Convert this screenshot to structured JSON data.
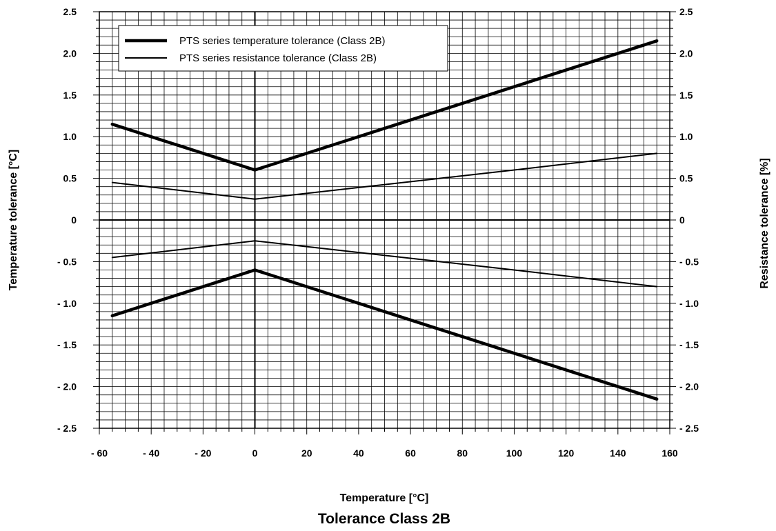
{
  "chart_data": {
    "type": "line",
    "title": "Tolerance Class 2B",
    "xlabel": "Temperature [°C]",
    "ylabel_left": "Temperature tolerance [°C]",
    "ylabel_right": "Resistance tolerance [%]",
    "xlim": [
      -60,
      160
    ],
    "ylim": [
      -2.5,
      2.5
    ],
    "x_ticks": [
      "- 60",
      "- 40",
      "- 20",
      "0",
      "20",
      "40",
      "60",
      "80",
      "100",
      "120",
      "140",
      "160"
    ],
    "y_ticks": [
      "2.5",
      "2.0",
      "1.5",
      "1.0",
      "0.5",
      "0",
      "- 0.5",
      "- 1.0",
      "- 1.5",
      "- 2.0",
      "- 2.5"
    ],
    "grid": true,
    "legend_position": "top-left",
    "series": [
      {
        "name": "PTS series temperature tolerance (Class 2B)",
        "style": "thick",
        "upper": [
          [
            -55,
            1.15
          ],
          [
            0,
            0.6
          ],
          [
            155,
            2.15
          ]
        ],
        "lower": [
          [
            -55,
            -1.15
          ],
          [
            0,
            -0.6
          ],
          [
            155,
            -2.15
          ]
        ]
      },
      {
        "name": "PTS series resistance tolerance (Class 2B)",
        "style": "thin",
        "upper": [
          [
            -55,
            0.45
          ],
          [
            0,
            0.25
          ],
          [
            40,
            0.39
          ],
          [
            100,
            0.6
          ],
          [
            155,
            0.8
          ]
        ],
        "lower": [
          [
            -55,
            -0.45
          ],
          [
            0,
            -0.25
          ],
          [
            40,
            -0.39
          ],
          [
            100,
            -0.6
          ],
          [
            155,
            -0.8
          ]
        ]
      }
    ],
    "colors": {
      "line": "#000000",
      "grid": "#000000",
      "background": "#ffffff"
    }
  }
}
